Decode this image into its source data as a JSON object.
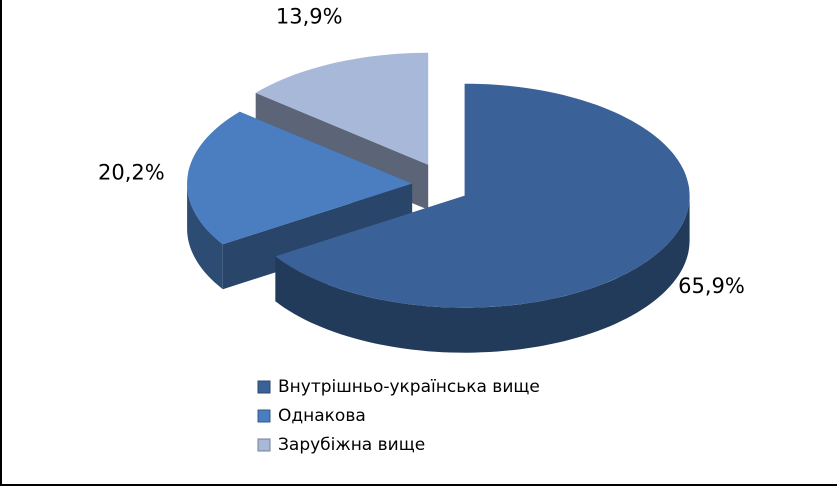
{
  "chart_data": {
    "type": "pie3d",
    "categories": [
      "Внутрішньо-українська вище",
      "Однакова",
      "Зарубіжна вище"
    ],
    "values": [
      65.9,
      20.2,
      13.9
    ],
    "value_labels": [
      "65,9%",
      "20,2%",
      "13,9%"
    ],
    "colors": [
      "#3b6298",
      "#4a7ec0",
      "#a8b8d8"
    ],
    "legend": "bottom"
  }
}
